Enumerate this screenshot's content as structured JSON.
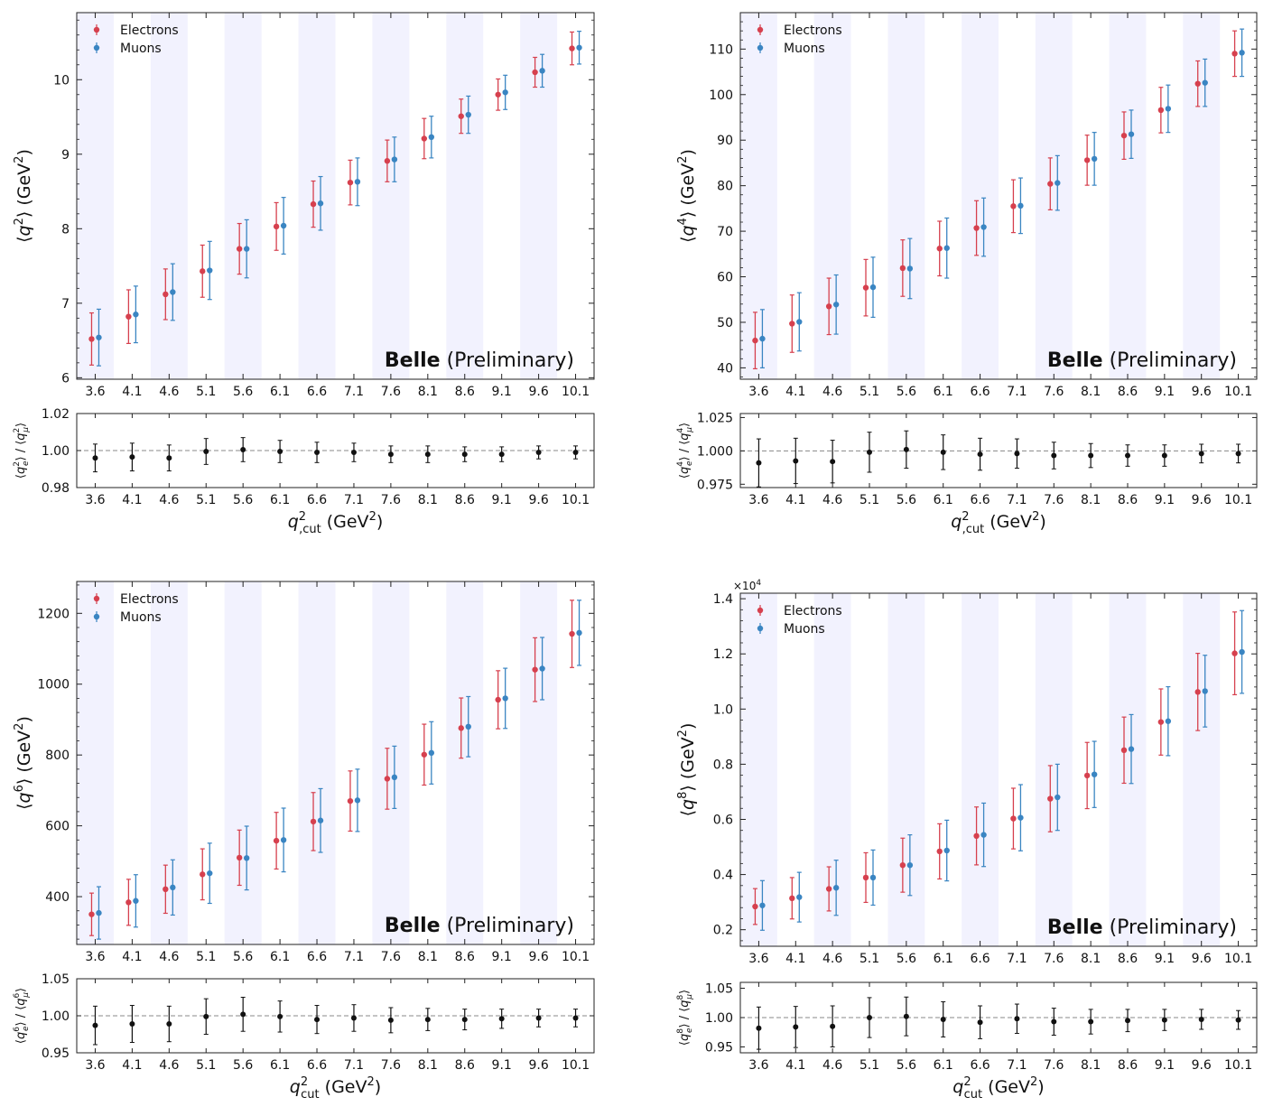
{
  "panel_layout": [
    {
      "x0": 85,
      "x1": 658,
      "main_top": 14,
      "main_bot": 420,
      "ratio_top": 458,
      "ratio_bot": 540
    },
    {
      "x0": 820,
      "x1": 1392,
      "main_top": 14,
      "main_bot": 420,
      "ratio_top": 458,
      "ratio_bot": 540
    },
    {
      "x0": 85,
      "x1": 658,
      "main_top": 644,
      "main_bot": 1046,
      "ratio_top": 1084,
      "ratio_bot": 1166
    },
    {
      "x0": 820,
      "x1": 1392,
      "main_top": 657,
      "main_bot": 1048,
      "ratio_top": 1088,
      "ratio_bot": 1166
    }
  ],
  "chart_data": [
    {
      "type": "scatter",
      "categories": [
        "3.6",
        "4.1",
        "4.6",
        "5.1",
        "5.6",
        "6.1",
        "6.6",
        "7.1",
        "7.6",
        "8.1",
        "8.6",
        "9.1",
        "9.6",
        "10.1"
      ],
      "series": [
        {
          "name": "Electrons",
          "color": "#d6404e",
          "values": [
            6.52,
            6.82,
            7.12,
            7.43,
            7.73,
            8.03,
            8.33,
            8.62,
            8.91,
            9.21,
            9.51,
            9.8,
            10.1,
            10.42
          ],
          "errors": [
            0.35,
            0.36,
            0.34,
            0.35,
            0.34,
            0.32,
            0.31,
            0.3,
            0.28,
            0.27,
            0.23,
            0.21,
            0.2,
            0.22
          ]
        },
        {
          "name": "Muons",
          "color": "#3a85c2",
          "values": [
            6.54,
            6.85,
            7.15,
            7.44,
            7.73,
            8.04,
            8.34,
            8.63,
            8.93,
            9.23,
            9.53,
            9.83,
            10.12,
            10.43
          ],
          "errors": [
            0.38,
            0.38,
            0.38,
            0.39,
            0.39,
            0.38,
            0.36,
            0.32,
            0.3,
            0.28,
            0.25,
            0.23,
            0.22,
            0.22
          ]
        }
      ],
      "ylabel_var": "q",
      "ylabel_exp": "2",
      "ylabel_unit": "(GeV",
      "ylabel_unit_exp": "2",
      "ylim": [
        5.98,
        10.9
      ],
      "yticks": [
        6,
        7,
        8,
        9,
        10
      ],
      "ytick_labels": [
        "6",
        "7",
        "8",
        "9",
        "10"
      ],
      "scale_label": "",
      "watermark_bold": "Belle",
      "watermark_rest": " (Preliminary)",
      "ratio": {
        "values": [
          0.996,
          0.9965,
          0.996,
          0.9995,
          1.0005,
          0.9995,
          0.999,
          0.999,
          0.998,
          0.998,
          0.998,
          0.998,
          0.999,
          0.999
        ],
        "errors": [
          0.0075,
          0.0075,
          0.007,
          0.007,
          0.0065,
          0.006,
          0.0055,
          0.005,
          0.0045,
          0.0045,
          0.004,
          0.004,
          0.0035,
          0.0035
        ],
        "ylim": [
          0.98,
          1.02
        ],
        "yticks": [
          0.98,
          1.0,
          1.02
        ],
        "ytick_labels": [
          "0.98",
          "1.00",
          "1.02"
        ],
        "ylabel_num": "q",
        "ylabel_num_sub": "e",
        "ylabel_num_exp": "2",
        "ylabel_den": "q",
        "ylabel_den_sub": "μ",
        "ylabel_den_exp": "2"
      },
      "xlabel_var": "q",
      "xlabel_exp": "2",
      "xlabel_sub": ",cut",
      "xlabel_unit": "(GeV",
      "xlabel_unit_exp": "2"
    },
    {
      "type": "scatter",
      "categories": [
        "3.6",
        "4.1",
        "4.6",
        "5.1",
        "5.6",
        "6.1",
        "6.6",
        "7.1",
        "7.6",
        "8.1",
        "8.6",
        "9.1",
        "9.6",
        "10.1"
      ],
      "series": [
        {
          "name": "Electrons",
          "color": "#d6404e",
          "values": [
            46.0,
            49.7,
            53.5,
            57.6,
            61.9,
            66.2,
            70.7,
            75.5,
            80.4,
            85.6,
            91.0,
            96.6,
            102.4,
            109.0
          ],
          "errors": [
            6.2,
            6.3,
            6.2,
            6.2,
            6.2,
            6.0,
            6.0,
            5.8,
            5.7,
            5.5,
            5.2,
            5.0,
            5.0,
            5.0
          ]
        },
        {
          "name": "Muons",
          "color": "#3a85c2",
          "values": [
            46.4,
            50.1,
            53.9,
            57.7,
            61.8,
            66.3,
            70.9,
            75.6,
            80.6,
            85.9,
            91.3,
            96.9,
            102.6,
            109.2
          ],
          "errors": [
            6.4,
            6.4,
            6.5,
            6.6,
            6.6,
            6.6,
            6.4,
            6.1,
            6.0,
            5.8,
            5.3,
            5.2,
            5.2,
            5.2
          ]
        },
        {
          "name": "_",
          "color": "#000000",
          "values": [],
          "errors": []
        }
      ],
      "ylabel_var": "q",
      "ylabel_exp": "4",
      "ylabel_unit": "(GeV",
      "ylabel_unit_exp": "2",
      "ylim": [
        37.5,
        118
      ],
      "yticks": [
        40,
        50,
        60,
        70,
        80,
        90,
        100,
        110
      ],
      "ytick_labels": [
        "40",
        "50",
        "60",
        "70",
        "80",
        "90",
        "100",
        "110"
      ],
      "scale_label": "",
      "watermark_bold": "Belle",
      "watermark_rest": " (Preliminary)",
      "ratio": {
        "values": [
          0.991,
          0.9925,
          0.992,
          0.999,
          1.001,
          0.999,
          0.9975,
          0.998,
          0.9965,
          0.9965,
          0.9965,
          0.9965,
          0.998,
          0.998
        ],
        "errors": [
          0.018,
          0.017,
          0.016,
          0.015,
          0.014,
          0.013,
          0.012,
          0.011,
          0.01,
          0.009,
          0.008,
          0.008,
          0.007,
          0.007
        ],
        "ylim": [
          0.9725,
          1.028
        ],
        "yticks": [
          0.975,
          1.0,
          1.025
        ],
        "ytick_labels": [
          "0.975",
          "1.000",
          "1.025"
        ],
        "ylabel_num": "q",
        "ylabel_num_sub": "e",
        "ylabel_num_exp": "4",
        "ylabel_den": "q",
        "ylabel_den_sub": "μ",
        "ylabel_den_exp": "4"
      },
      "xlabel_var": "q",
      "xlabel_exp": "2",
      "xlabel_sub": ",cut",
      "xlabel_unit": "(GeV",
      "xlabel_unit_exp": "2"
    },
    {
      "type": "scatter",
      "categories": [
        "3.6",
        "4.1",
        "4.6",
        "5.1",
        "5.6",
        "6.1",
        "6.6",
        "7.1",
        "7.6",
        "8.1",
        "8.6",
        "9.1",
        "9.6",
        "10.1"
      ],
      "series": [
        {
          "name": "Electrons",
          "color": "#d6404e",
          "values": [
            350,
            384,
            421,
            463,
            510,
            558,
            612,
            670,
            733,
            801,
            876,
            956,
            1041,
            1142
          ],
          "errors": [
            60,
            65,
            68,
            72,
            78,
            80,
            82,
            85,
            86,
            86,
            85,
            82,
            90,
            95
          ]
        },
        {
          "name": "Muons",
          "color": "#3a85c2",
          "values": [
            354,
            388,
            426,
            466,
            509,
            560,
            615,
            672,
            737,
            806,
            880,
            960,
            1044,
            1145
          ],
          "errors": [
            74,
            74,
            78,
            85,
            90,
            90,
            90,
            88,
            88,
            88,
            85,
            85,
            88,
            92
          ]
        }
      ],
      "ylabel_var": "q",
      "ylabel_exp": "6",
      "ylabel_unit": "(GeV",
      "ylabel_unit_exp": "2",
      "ylim": [
        265,
        1290
      ],
      "yticks": [
        400,
        600,
        800,
        1000,
        1200
      ],
      "ytick_labels": [
        "400",
        "600",
        "800",
        "1000",
        "1200"
      ],
      "scale_label": "",
      "watermark_bold": "Belle",
      "watermark_rest": " (Preliminary)",
      "ratio": {
        "values": [
          0.987,
          0.989,
          0.989,
          0.999,
          1.002,
          0.999,
          0.995,
          0.997,
          0.994,
          0.995,
          0.995,
          0.996,
          0.997,
          0.997
        ],
        "errors": [
          0.026,
          0.025,
          0.024,
          0.024,
          0.023,
          0.021,
          0.019,
          0.018,
          0.017,
          0.015,
          0.014,
          0.013,
          0.012,
          0.012
        ],
        "ylim": [
          0.95,
          1.05
        ],
        "yticks": [
          0.95,
          1.0,
          1.05
        ],
        "ytick_labels": [
          "0.95",
          "1.00",
          "1.05"
        ],
        "ylabel_num": "q",
        "ylabel_num_sub": "e",
        "ylabel_num_exp": "6",
        "ylabel_den": "q",
        "ylabel_den_sub": "μ",
        "ylabel_den_exp": "6"
      },
      "xlabel_var": "q",
      "xlabel_exp": "2",
      "xlabel_sub": "cut",
      "xlabel_unit": "(GeV",
      "xlabel_unit_exp": "2"
    },
    {
      "type": "scatter",
      "categories": [
        "3.6",
        "4.1",
        "4.6",
        "5.1",
        "5.6",
        "6.1",
        "6.6",
        "7.1",
        "7.6",
        "8.1",
        "8.6",
        "9.1",
        "9.6",
        "10.1"
      ],
      "series": [
        {
          "name": "Electrons",
          "color": "#d6404e",
          "values": [
            0.284,
            0.314,
            0.348,
            0.389,
            0.434,
            0.484,
            0.54,
            0.603,
            0.675,
            0.759,
            0.851,
            0.953,
            1.062,
            1.202
          ],
          "errors": [
            0.065,
            0.075,
            0.08,
            0.09,
            0.098,
            0.1,
            0.105,
            0.11,
            0.12,
            0.12,
            0.12,
            0.12,
            0.14,
            0.15
          ]
        },
        {
          "name": "Muons",
          "color": "#3a85c2",
          "values": [
            0.288,
            0.318,
            0.352,
            0.389,
            0.434,
            0.487,
            0.544,
            0.606,
            0.68,
            0.763,
            0.855,
            0.956,
            1.065,
            1.207
          ],
          "errors": [
            0.09,
            0.09,
            0.1,
            0.1,
            0.11,
            0.11,
            0.115,
            0.12,
            0.12,
            0.12,
            0.125,
            0.125,
            0.13,
            0.15
          ]
        }
      ],
      "ylabel_var": "q",
      "ylabel_exp": "8",
      "ylabel_unit": "(GeV",
      "ylabel_unit_exp": "2",
      "ylim": [
        0.14,
        1.42
      ],
      "yticks": [
        0.2,
        0.4,
        0.6,
        0.8,
        1.0,
        1.2,
        1.4
      ],
      "ytick_labels": [
        "0.2",
        "0.4",
        "0.6",
        "0.8",
        "1.0",
        "1.2",
        "1.4"
      ],
      "scale_label": "×10",
      "scale_exp": "4",
      "watermark_bold": "Belle",
      "watermark_rest": " (Preliminary)",
      "ratio": {
        "values": [
          0.982,
          0.984,
          0.985,
          1.0,
          1.002,
          0.997,
          0.992,
          0.998,
          0.993,
          0.993,
          0.995,
          0.996,
          0.997,
          0.996
        ],
        "errors": [
          0.036,
          0.035,
          0.035,
          0.034,
          0.033,
          0.03,
          0.028,
          0.025,
          0.023,
          0.021,
          0.019,
          0.018,
          0.017,
          0.016
        ],
        "ylim": [
          0.94,
          1.06
        ],
        "yticks": [
          0.95,
          1.0,
          1.05
        ],
        "ytick_labels": [
          "0.95",
          "1.00",
          "1.05"
        ],
        "ylabel_num": "q",
        "ylabel_num_sub": "e",
        "ylabel_num_exp": "8",
        "ylabel_den": "q",
        "ylabel_den_sub": "μ",
        "ylabel_den_exp": "8"
      },
      "xlabel_var": "q",
      "xlabel_exp": "2",
      "xlabel_sub": "cut",
      "xlabel_unit": "(GeV",
      "xlabel_unit_exp": "2"
    }
  ],
  "colors": {
    "band": "#f2f2fe",
    "ratio_point": "#111111",
    "axis": "#222222",
    "dash": "#888888"
  }
}
